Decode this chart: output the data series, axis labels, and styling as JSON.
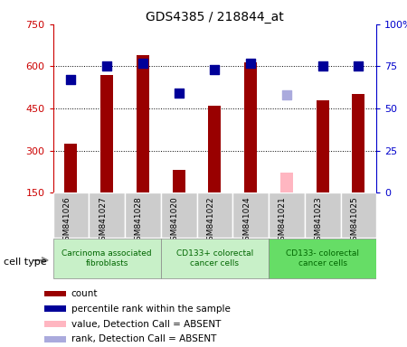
{
  "title": "GDS4385 / 218844_at",
  "samples": [
    "GSM841026",
    "GSM841027",
    "GSM841028",
    "GSM841020",
    "GSM841022",
    "GSM841024",
    "GSM841021",
    "GSM841023",
    "GSM841025"
  ],
  "counts": [
    325,
    570,
    640,
    230,
    460,
    615,
    null,
    480,
    500
  ],
  "counts_absent": [
    null,
    null,
    null,
    null,
    null,
    null,
    220,
    null,
    null
  ],
  "ranks": [
    67,
    75,
    77,
    59,
    73,
    77,
    null,
    75,
    75
  ],
  "ranks_absent": [
    null,
    null,
    null,
    null,
    null,
    null,
    58,
    null,
    null
  ],
  "ylim_left": [
    150,
    750
  ],
  "ylim_right": [
    0,
    100
  ],
  "yticks_left": [
    150,
    300,
    450,
    600,
    750
  ],
  "yticks_right": [
    0,
    25,
    50,
    75,
    100
  ],
  "ytick_labels_left": [
    "150",
    "300",
    "450",
    "600",
    "750"
  ],
  "ytick_labels_right": [
    "0",
    "25",
    "50",
    "75",
    "100%"
  ],
  "groups": [
    {
      "label": "Carcinoma associated\nfibroblasts",
      "start": 0,
      "end": 3,
      "color": "#c8f0c8"
    },
    {
      "label": "CD133+ colorectal\ncancer cells",
      "start": 3,
      "end": 6,
      "color": "#c8f0c8"
    },
    {
      "label": "CD133- colorectal\ncancer cells",
      "start": 6,
      "end": 9,
      "color": "#66dd66"
    }
  ],
  "bar_color": "#990000",
  "bar_color_absent": "#FFB6C1",
  "rank_color": "#000099",
  "rank_color_absent": "#aaaadd",
  "bar_width": 0.35,
  "rank_marker_size": 45,
  "legend_items": [
    {
      "color": "#990000",
      "label": "count"
    },
    {
      "color": "#000099",
      "label": "percentile rank within the sample"
    },
    {
      "color": "#FFB6C1",
      "label": "value, Detection Call = ABSENT"
    },
    {
      "color": "#aaaadd",
      "label": "rank, Detection Call = ABSENT"
    }
  ],
  "cell_type_label": "cell type",
  "sample_bg": "#cccccc",
  "plot_bg": "#ffffff",
  "grid_color": "black",
  "left_axis_color": "#CC0000",
  "right_axis_color": "#0000CC"
}
